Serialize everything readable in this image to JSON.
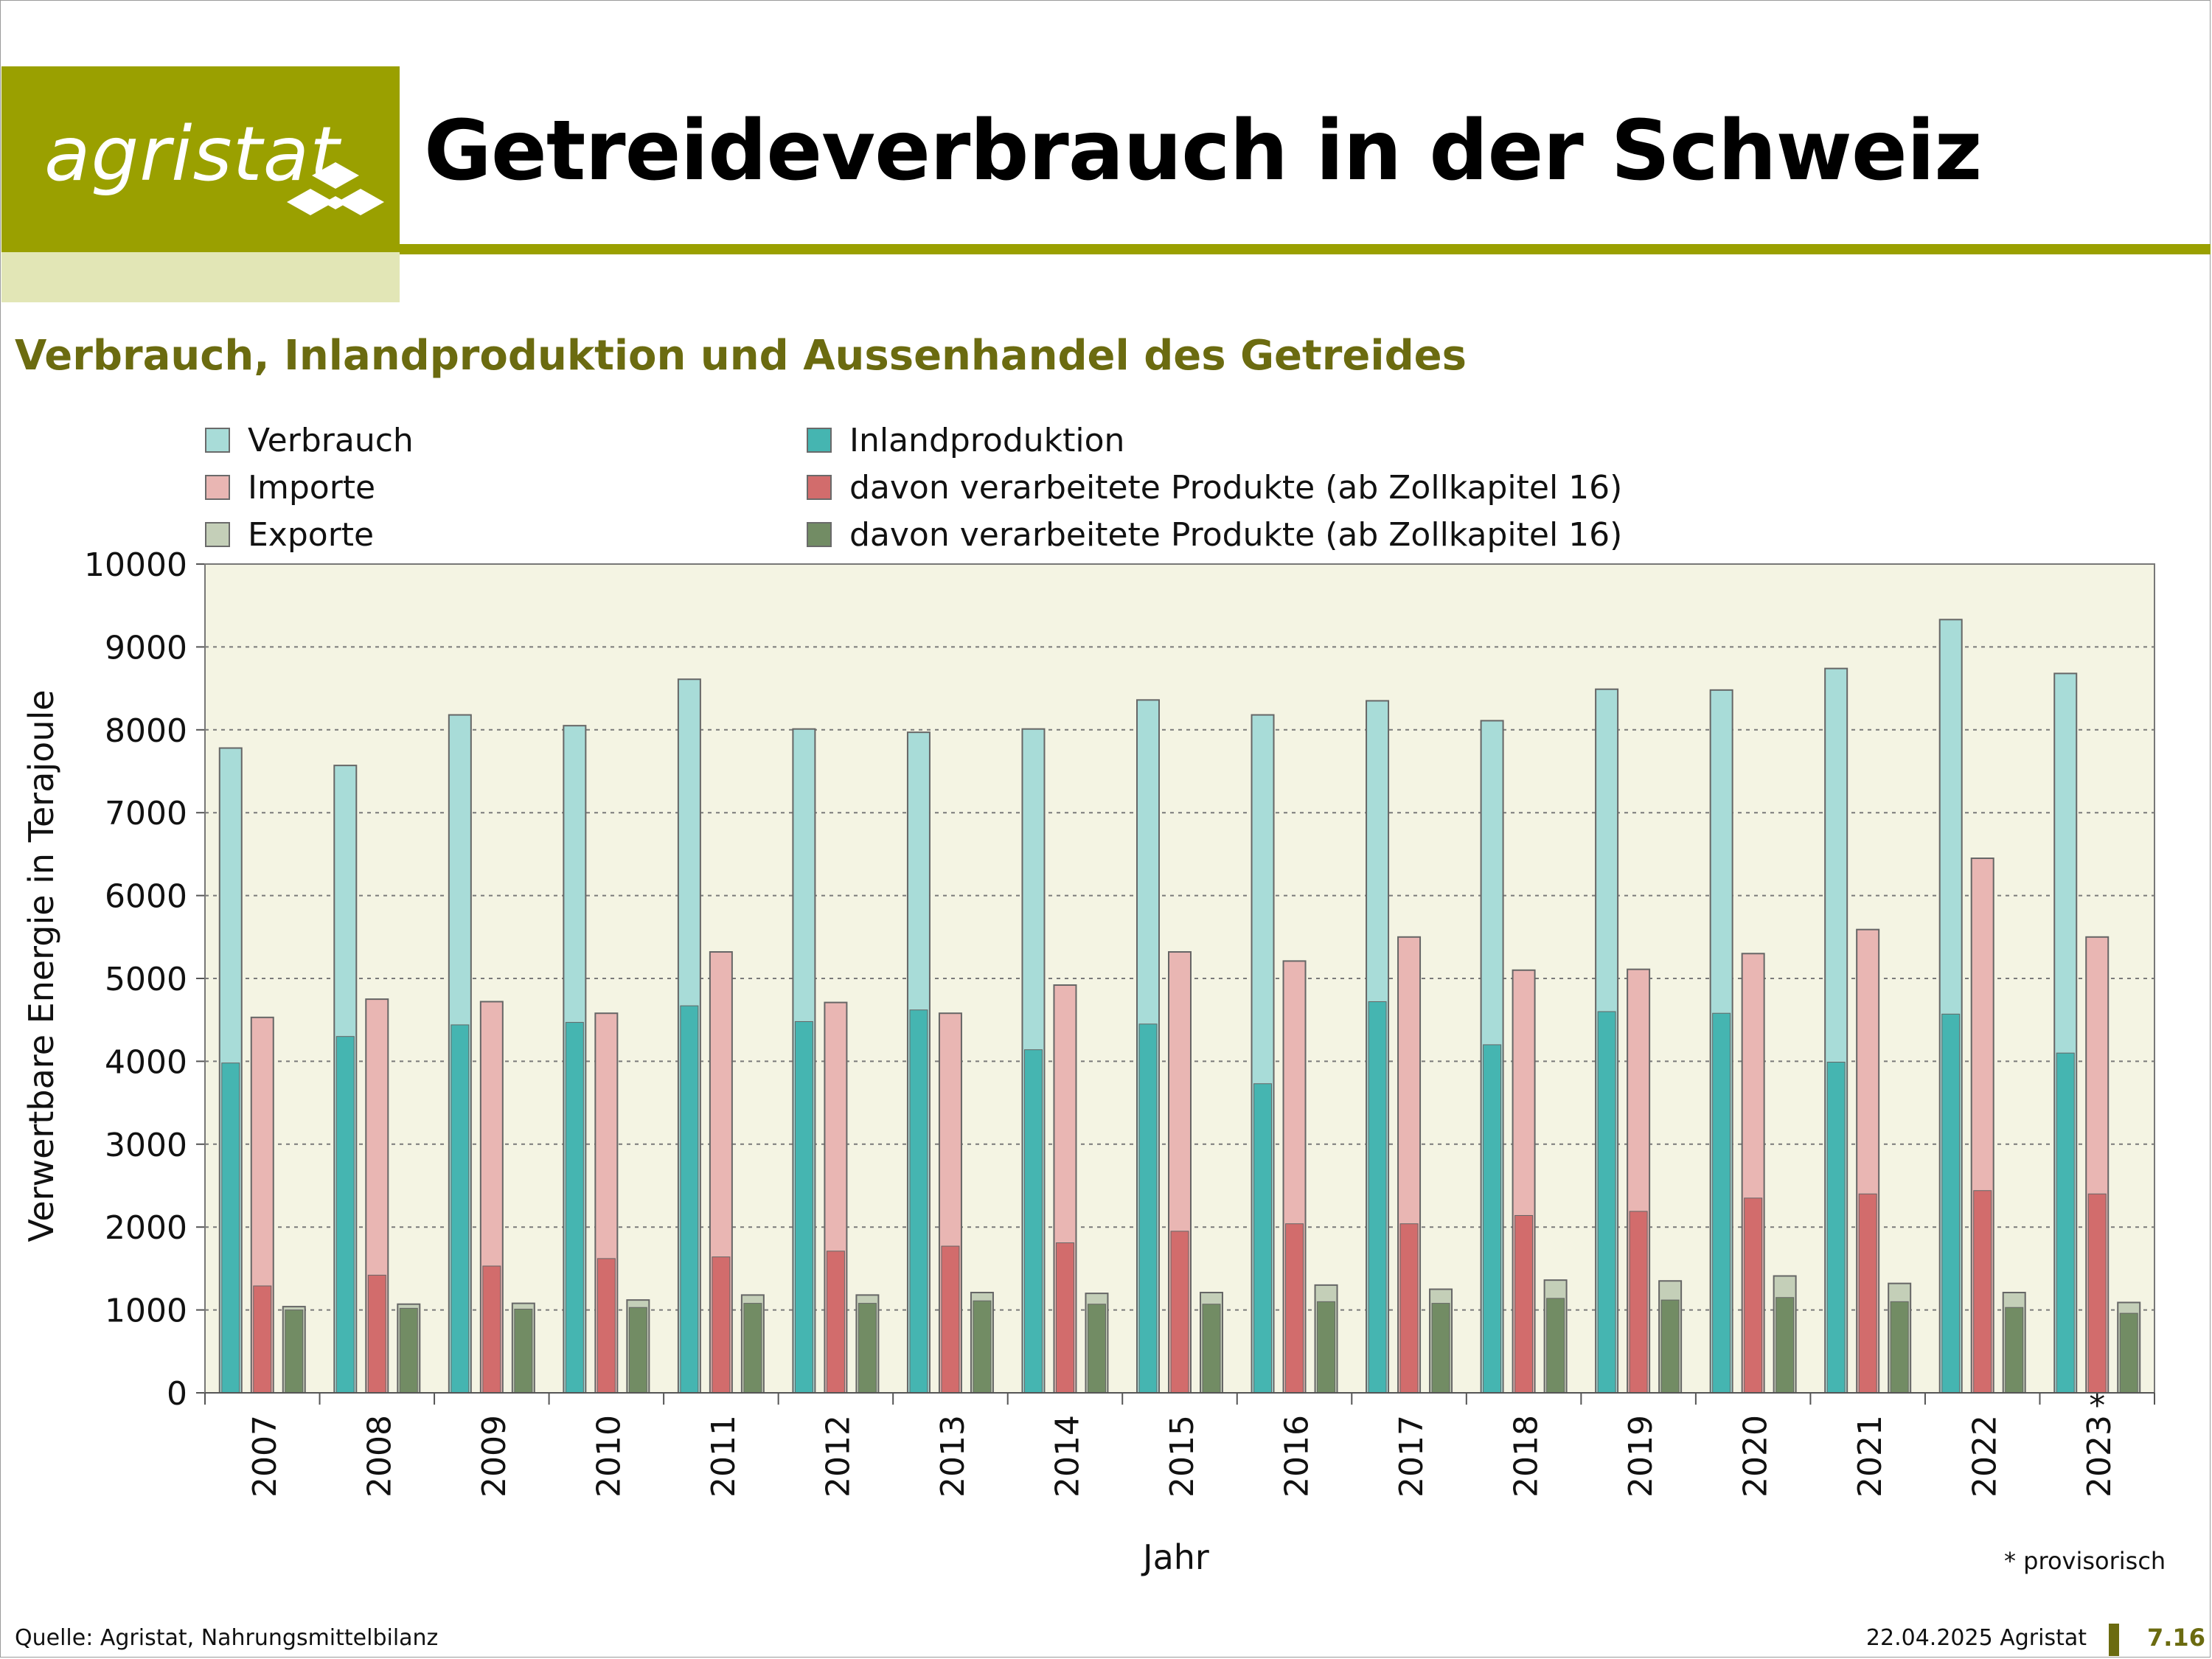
{
  "header": {
    "logo_text": "agristat",
    "title": "Getreideverbrauch in der Schweiz"
  },
  "footer": {
    "source": "Quelle: Agristat, Nahrungsmittelbilanz",
    "date": "22.04.2025 Agristat",
    "page": "7.16",
    "note": "* provisorisch"
  },
  "colors": {
    "brand": "#9aa000",
    "brand_light": "#e2e6b6",
    "subtitle": "#6b6b10",
    "plot_bg": "#f4f4e3"
  },
  "chart_data": {
    "type": "bar",
    "title": "Verbrauch, Inlandproduktion und Aussenhandel des Getreides",
    "xlabel": "Jahr",
    "ylabel": "Verwertbare Energie in Terajoule",
    "ylim": [
      0,
      10000
    ],
    "yticks": [
      0,
      1000,
      2000,
      3000,
      4000,
      5000,
      6000,
      7000,
      8000,
      9000,
      10000
    ],
    "grid": true,
    "legend_position": "top",
    "categories": [
      "2007",
      "2008",
      "2009",
      "2010",
      "2011",
      "2012",
      "2013",
      "2014",
      "2015",
      "2016",
      "2017",
      "2018",
      "2019",
      "2020",
      "2021",
      "2022",
      "2023"
    ],
    "category_marks": [
      "",
      "",
      "",
      "",
      "",
      "",
      "",
      "",
      "",
      "",
      "",
      "",
      "",
      "",
      "",
      "",
      "*"
    ],
    "groups": [
      {
        "total": {
          "name": "Verbrauch",
          "color": "#a8dcd8"
        },
        "part": {
          "name": "Inlandproduktion",
          "color": "#45b5b1"
        }
      },
      {
        "total": {
          "name": "Importe",
          "color": "#e9b6b3"
        },
        "part": {
          "name": "davon verarbeitete Produkte (ab Zollkapitel 16)",
          "color": "#d26c6c"
        }
      },
      {
        "total": {
          "name": "Exporte",
          "color": "#c4cfb8"
        },
        "part": {
          "name": "davon verarbeitete Produkte (ab Zollkapitel 16)",
          "color": "#728c64"
        }
      }
    ],
    "series": [
      {
        "name": "Verbrauch",
        "values": [
          7780,
          7570,
          8180,
          8050,
          8610,
          8010,
          7970,
          8010,
          8360,
          8180,
          8350,
          8110,
          8490,
          8480,
          8740,
          9330,
          8680
        ]
      },
      {
        "name": "Inlandproduktion",
        "values": [
          3980,
          4300,
          4440,
          4470,
          4670,
          4480,
          4620,
          4140,
          4450,
          3730,
          4720,
          4200,
          4600,
          4580,
          3990,
          4570,
          4100
        ]
      },
      {
        "name": "Importe",
        "values": [
          4530,
          4750,
          4720,
          4580,
          5320,
          4710,
          4580,
          4920,
          5320,
          5210,
          5500,
          5100,
          5110,
          5300,
          5590,
          6450,
          5500
        ]
      },
      {
        "name": "davon verarbeitete Produkte (ab Zollkapitel 16)",
        "values": [
          1290,
          1420,
          1530,
          1620,
          1640,
          1710,
          1770,
          1810,
          1950,
          2040,
          2040,
          2140,
          2190,
          2350,
          2400,
          2440,
          2400
        ]
      },
      {
        "name": "Exporte",
        "values": [
          1040,
          1070,
          1080,
          1120,
          1180,
          1180,
          1210,
          1200,
          1210,
          1300,
          1250,
          1360,
          1350,
          1410,
          1320,
          1210,
          1090
        ]
      },
      {
        "name": "davon verarbeitete Produkte (ab Zollkapitel 16)",
        "values": [
          1000,
          1020,
          1010,
          1030,
          1080,
          1080,
          1110,
          1070,
          1070,
          1100,
          1080,
          1140,
          1120,
          1150,
          1100,
          1030,
          960
        ]
      }
    ]
  }
}
